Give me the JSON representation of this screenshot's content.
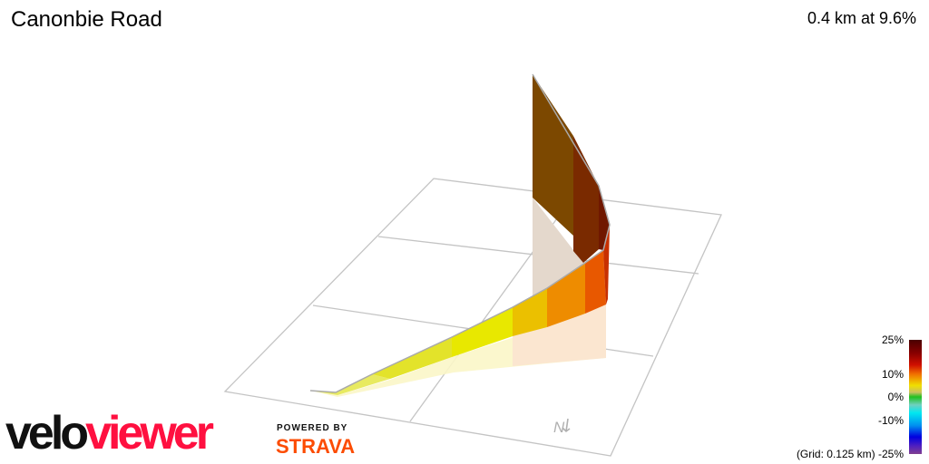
{
  "header": {
    "title": "Canonbie Road",
    "summary": "0.4 km at 9.6%"
  },
  "legend": {
    "ticks": [
      "25%",
      "10%",
      "0%",
      "-10%",
      "-25%"
    ],
    "grid_note": "(Grid: 0.125 km)"
  },
  "compass": {
    "label": "N",
    "icon": "north-arrow-icon"
  },
  "branding": {
    "logo_part1": "velo",
    "logo_part2": "viewer",
    "powered_by": "POWERED BY",
    "strava": "STRAVA",
    "logo_color": "#ff1040",
    "strava_color": "#fc4c02"
  }
}
